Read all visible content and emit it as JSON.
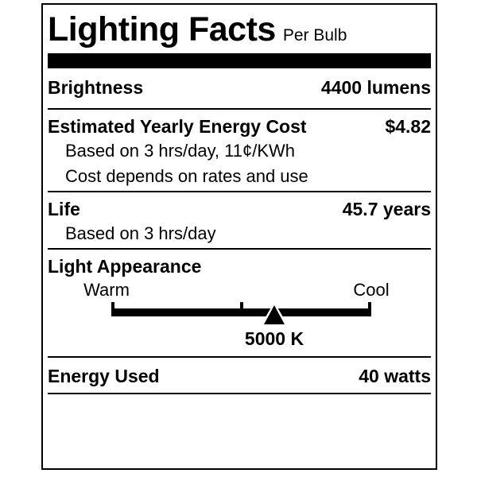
{
  "label": {
    "title": "Lighting Facts",
    "subtitle": "Per Bulb",
    "rows": {
      "brightness": {
        "label": "Brightness",
        "value": "4400 lumens"
      },
      "energy_cost": {
        "label": "Estimated Yearly Energy Cost",
        "value": "$4.82",
        "notes": [
          "Based on 3 hrs/day, 11¢/KWh",
          "Cost depends on rates and use"
        ]
      },
      "life": {
        "label": "Life",
        "value": "45.7 years",
        "note": "Based on 3 hrs/day"
      },
      "energy_used": {
        "label": "Energy Used",
        "value": "40 watts"
      }
    },
    "light_appearance": {
      "heading": "Light Appearance",
      "warm": "Warm",
      "cool": "Cool",
      "kelvin": "5000 K",
      "pointer_percent": 62.7
    },
    "colors": {
      "ink": "#000000",
      "paper": "#ffffff"
    }
  }
}
